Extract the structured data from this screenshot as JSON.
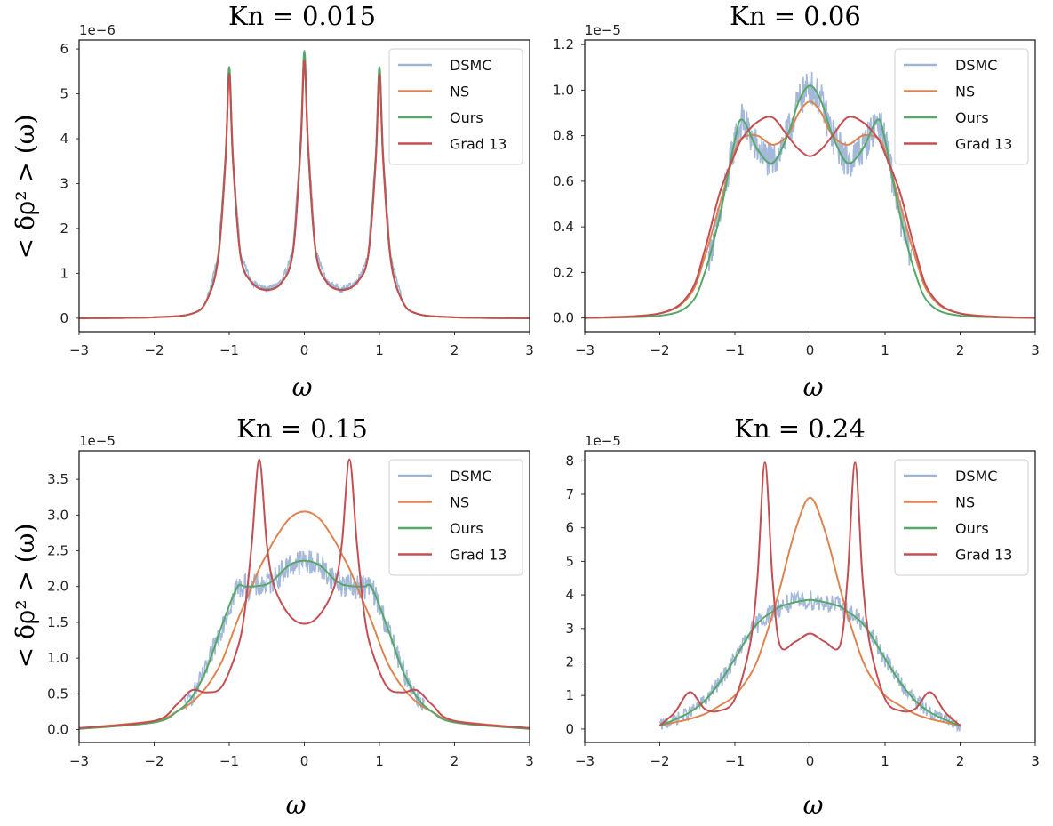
{
  "figure": {
    "ylabel": "< δρ² > (ω)"
  },
  "legend_entries": [
    "DSMC",
    "NS",
    "Ours",
    "Grad 13"
  ],
  "colors": {
    "DSMC": "#9fb4d8",
    "NS": "#dd8452",
    "Ours": "#55a868",
    "Grad 13": "#c44e52"
  },
  "chart_data": [
    {
      "type": "line",
      "title": "Kn = 0.015",
      "xlabel": "ω",
      "ylabel": "< δρ² > (ω)",
      "y_offset_label": "1e−6",
      "xlim": [
        -3,
        3
      ],
      "ylim": [
        -0.3,
        6.2
      ],
      "xticks": [
        -3,
        -2,
        -1,
        0,
        1,
        2,
        3
      ],
      "yticks": [
        0,
        1,
        2,
        3,
        4,
        5,
        6
      ],
      "legend_position": "top-right",
      "x": [
        -3.0,
        -2.0,
        -1.5,
        -1.3,
        -1.15,
        -1.05,
        -1.0,
        -0.95,
        -0.85,
        -0.7,
        -0.5,
        -0.3,
        -0.15,
        -0.05,
        0.0,
        0.05,
        0.15,
        0.3,
        0.5,
        0.7,
        0.85,
        0.95,
        1.0,
        1.05,
        1.15,
        1.3,
        1.5,
        2.0,
        3.0
      ],
      "series": [
        {
          "name": "NS",
          "values": [
            0.0,
            0.02,
            0.1,
            0.4,
            1.3,
            3.5,
            5.45,
            3.5,
            1.4,
            0.8,
            0.63,
            0.8,
            1.5,
            3.8,
            5.75,
            3.8,
            1.5,
            0.8,
            0.63,
            0.8,
            1.4,
            3.5,
            5.45,
            3.5,
            1.3,
            0.4,
            0.1,
            0.02,
            0.0
          ]
        },
        {
          "name": "Ours",
          "values": [
            0.0,
            0.02,
            0.1,
            0.4,
            1.35,
            3.6,
            5.6,
            3.6,
            1.4,
            0.8,
            0.64,
            0.8,
            1.5,
            3.9,
            5.95,
            3.9,
            1.5,
            0.8,
            0.64,
            0.8,
            1.4,
            3.6,
            5.6,
            3.6,
            1.35,
            0.4,
            0.1,
            0.02,
            0.0
          ]
        },
        {
          "name": "Grad 13",
          "values": [
            0.0,
            0.02,
            0.1,
            0.4,
            1.3,
            3.5,
            5.45,
            3.5,
            1.4,
            0.8,
            0.63,
            0.8,
            1.5,
            3.8,
            5.75,
            3.8,
            1.5,
            0.8,
            0.63,
            0.8,
            1.4,
            3.5,
            5.45,
            3.5,
            1.3,
            0.4,
            0.1,
            0.02,
            0.0
          ]
        }
      ],
      "dsmc": {
        "name": "DSMC",
        "x_range": [
          -1.3,
          1.3
        ],
        "noise_amplitude": 0.1,
        "follows": "Ours"
      }
    },
    {
      "type": "line",
      "title": "Kn = 0.06",
      "xlabel": "ω",
      "ylabel": "",
      "y_offset_label": "1e−5",
      "xlim": [
        -3,
        3
      ],
      "ylim": [
        -0.06,
        1.22
      ],
      "xticks": [
        -3,
        -2,
        -1,
        0,
        1,
        2,
        3
      ],
      "yticks": [
        0.0,
        0.2,
        0.4,
        0.6,
        0.8,
        1.0,
        1.2
      ],
      "legend_position": "top-right",
      "x": [
        -3.0,
        -2.0,
        -1.6,
        -1.4,
        -1.2,
        -1.0,
        -0.9,
        -0.7,
        -0.5,
        -0.3,
        -0.15,
        0.0,
        0.15,
        0.3,
        0.5,
        0.7,
        0.9,
        1.0,
        1.2,
        1.4,
        1.6,
        2.0,
        3.0
      ],
      "series": [
        {
          "name": "NS",
          "values": [
            0.0,
            0.02,
            0.1,
            0.27,
            0.5,
            0.73,
            0.79,
            0.8,
            0.76,
            0.8,
            0.9,
            0.95,
            0.9,
            0.8,
            0.76,
            0.8,
            0.79,
            0.73,
            0.5,
            0.27,
            0.1,
            0.02,
            0.0
          ]
        },
        {
          "name": "Ours",
          "values": [
            0.0,
            0.01,
            0.06,
            0.2,
            0.45,
            0.78,
            0.87,
            0.74,
            0.68,
            0.8,
            0.95,
            1.02,
            0.95,
            0.8,
            0.68,
            0.74,
            0.87,
            0.78,
            0.45,
            0.2,
            0.06,
            0.01,
            0.0
          ]
        },
        {
          "name": "Grad 13",
          "values": [
            0.0,
            0.02,
            0.11,
            0.3,
            0.55,
            0.72,
            0.79,
            0.86,
            0.88,
            0.8,
            0.74,
            0.71,
            0.74,
            0.8,
            0.88,
            0.86,
            0.79,
            0.72,
            0.55,
            0.3,
            0.11,
            0.02,
            0.0
          ]
        }
      ],
      "dsmc": {
        "name": "DSMC",
        "x_range": [
          -1.35,
          1.35
        ],
        "noise_amplitude": 0.08,
        "follows": "Ours"
      }
    },
    {
      "type": "line",
      "title": "Kn = 0.15",
      "xlabel": "ω",
      "ylabel": "< δρ² > (ω)",
      "y_offset_label": "1e−5",
      "xlim": [
        -3,
        3
      ],
      "ylim": [
        -0.18,
        3.9
      ],
      "xticks": [
        -3,
        -2,
        -1,
        0,
        1,
        2,
        3
      ],
      "yticks": [
        0.0,
        0.5,
        1.0,
        1.5,
        2.0,
        2.5,
        3.0,
        3.5
      ],
      "legend_position": "top-right",
      "x": [
        -3.0,
        -2.0,
        -1.7,
        -1.5,
        -1.3,
        -1.1,
        -0.9,
        -0.8,
        -0.7,
        -0.6,
        -0.5,
        -0.4,
        -0.2,
        0.0,
        0.2,
        0.4,
        0.5,
        0.6,
        0.7,
        0.8,
        0.9,
        1.1,
        1.3,
        1.5,
        1.7,
        2.0,
        3.0
      ],
      "series": [
        {
          "name": "NS",
          "values": [
            0.02,
            0.12,
            0.25,
            0.38,
            0.6,
            0.95,
            1.5,
            1.75,
            2.0,
            2.25,
            2.45,
            2.65,
            2.95,
            3.05,
            2.95,
            2.65,
            2.45,
            2.25,
            2.0,
            1.75,
            1.5,
            0.95,
            0.6,
            0.38,
            0.25,
            0.12,
            0.02
          ]
        },
        {
          "name": "Ours",
          "values": [
            0.01,
            0.1,
            0.25,
            0.45,
            0.85,
            1.45,
            1.98,
            2.0,
            2.0,
            2.01,
            2.03,
            2.1,
            2.3,
            2.36,
            2.3,
            2.1,
            2.03,
            2.01,
            2.0,
            2.0,
            1.98,
            1.45,
            0.85,
            0.45,
            0.25,
            0.1,
            0.01
          ]
        },
        {
          "name": "Grad 13",
          "values": [
            0.02,
            0.12,
            0.35,
            0.55,
            0.52,
            0.6,
            1.1,
            1.6,
            2.6,
            3.78,
            2.6,
            2.0,
            1.6,
            1.48,
            1.6,
            2.0,
            2.6,
            3.78,
            2.6,
            1.6,
            1.1,
            0.6,
            0.52,
            0.55,
            0.35,
            0.12,
            0.02
          ]
        }
      ],
      "dsmc": {
        "name": "DSMC",
        "x_range": [
          -1.6,
          1.6
        ],
        "noise_amplitude": 0.18,
        "follows": "Ours"
      }
    },
    {
      "type": "line",
      "title": "Kn = 0.24",
      "xlabel": "ω",
      "ylabel": "",
      "y_offset_label": "1e−5",
      "xlim": [
        -3,
        3
      ],
      "ylim": [
        -0.4,
        8.3
      ],
      "xticks": [
        -3,
        -2,
        -1,
        0,
        1,
        2,
        3
      ],
      "yticks": [
        0,
        1,
        2,
        3,
        4,
        5,
        6,
        7,
        8
      ],
      "legend_position": "top-right",
      "x": [
        -2.0,
        -1.8,
        -1.6,
        -1.4,
        -1.2,
        -1.0,
        -0.8,
        -0.7,
        -0.6,
        -0.5,
        -0.4,
        -0.2,
        0.0,
        0.2,
        0.4,
        0.5,
        0.6,
        0.7,
        0.8,
        1.0,
        1.2,
        1.4,
        1.6,
        1.8,
        2.0
      ],
      "series": [
        {
          "name": "NS",
          "values": [
            0.1,
            0.2,
            0.3,
            0.45,
            0.7,
            1.0,
            1.6,
            2.05,
            2.7,
            3.4,
            4.2,
            5.9,
            6.9,
            5.9,
            4.2,
            3.4,
            2.7,
            2.05,
            1.6,
            1.0,
            0.7,
            0.45,
            0.3,
            0.2,
            0.1
          ]
        },
        {
          "name": "Ours",
          "values": [
            0.1,
            0.28,
            0.5,
            0.85,
            1.4,
            2.1,
            2.85,
            3.15,
            3.35,
            3.5,
            3.65,
            3.78,
            3.85,
            3.78,
            3.65,
            3.5,
            3.35,
            3.15,
            2.85,
            2.1,
            1.4,
            0.85,
            0.5,
            0.28,
            0.1
          ]
        },
        {
          "name": "Grad 13",
          "values": [
            0.1,
            0.5,
            1.1,
            0.6,
            0.55,
            0.9,
            2.5,
            4.5,
            7.95,
            4.5,
            2.5,
            2.6,
            2.85,
            2.6,
            2.5,
            4.5,
            7.95,
            4.5,
            2.5,
            0.9,
            0.55,
            0.6,
            1.1,
            0.5,
            0.1
          ]
        }
      ],
      "dsmc": {
        "name": "DSMC",
        "x_range": [
          -2.0,
          2.0
        ],
        "noise_amplitude": 0.3,
        "follows": "Ours"
      }
    }
  ]
}
